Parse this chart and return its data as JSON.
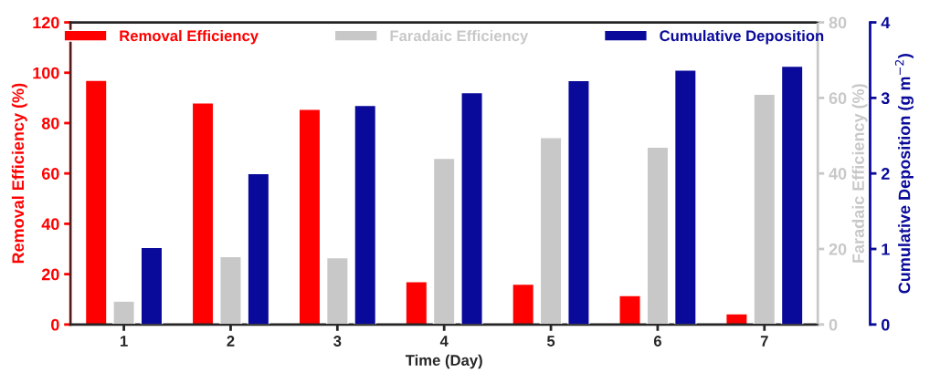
{
  "chart_data": {
    "type": "bar",
    "xlabel": "Time (Day)",
    "ylabel": "Removal Efficiency (%)",
    "y2label": "Faradaic Efficiency (%)",
    "y3label": "Cumulative Deposition (g m$^{−2}$)",
    "categories": [
      "1",
      "2",
      "3",
      "4",
      "5",
      "6",
      "7"
    ],
    "series": [
      {
        "name": "Removal Efficiency",
        "color": "#ff0000",
        "axis": "y",
        "values": [
          97,
          88,
          85.5,
          17,
          16,
          11.5,
          4.3
        ]
      },
      {
        "name": "Faradaic Efficiency",
        "color": "#c8c8c8",
        "axis": "y2",
        "values": [
          6.2,
          18,
          17.7,
          44,
          49.5,
          47,
          61
        ]
      },
      {
        "name": "Cumulative Deposition",
        "color": "#0a0a9a",
        "axis": "y3",
        "values": [
          1.02,
          2.0,
          2.9,
          3.07,
          3.23,
          3.37,
          3.42
        ]
      }
    ],
    "ylim": [
      0,
      120
    ],
    "yticks": [
      0,
      20,
      40,
      60,
      80,
      100,
      120
    ],
    "y2lim": [
      0,
      80
    ],
    "y2ticks": [
      0,
      20,
      40,
      60,
      80
    ],
    "y3lim": [
      0,
      4
    ],
    "y3ticks": [
      0,
      1,
      2,
      3,
      4
    ],
    "legend": "top",
    "grid": false
  }
}
